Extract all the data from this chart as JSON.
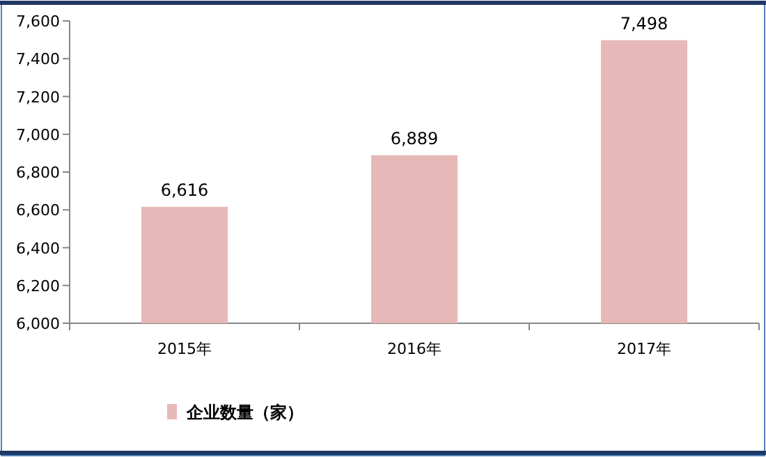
{
  "chart_data": {
    "type": "bar",
    "categories": [
      "2015年",
      "2016年",
      "2017年"
    ],
    "series": [
      {
        "name": "企业数量（家）",
        "color": "#e6b9b8",
        "values": [
          6616,
          6889,
          7498
        ],
        "value_labels": [
          "6,616",
          "6,889",
          "7,498"
        ]
      }
    ],
    "ylim": [
      6000,
      7600
    ],
    "yticks": [
      {
        "value": 6000,
        "label": "6,000"
      },
      {
        "value": 6200,
        "label": "6,200"
      },
      {
        "value": 6400,
        "label": "6,400"
      },
      {
        "value": 6600,
        "label": "6,600"
      },
      {
        "value": 6800,
        "label": "6,800"
      },
      {
        "value": 7000,
        "label": "7,000"
      },
      {
        "value": 7200,
        "label": "7,200"
      },
      {
        "value": 7400,
        "label": "7,400"
      },
      {
        "value": 7600,
        "label": "7,600"
      }
    ],
    "grid": false,
    "legend": "bottom"
  }
}
